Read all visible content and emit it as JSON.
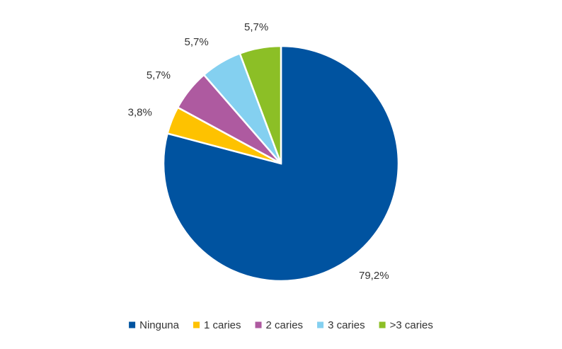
{
  "chart_data": {
    "type": "pie",
    "categories": [
      "Ninguna",
      "1 caries",
      "2 caries",
      "3 caries",
      ">3 caries"
    ],
    "values": [
      79.2,
      3.8,
      5.7,
      5.7,
      5.7
    ],
    "data_labels": [
      "79,2%",
      "3,8%",
      "5,7%",
      "5,7%",
      "5,7%"
    ],
    "colors": [
      "#0053a0",
      "#fec200",
      "#ae5aa0",
      "#84d0f0",
      "#8cbf26"
    ],
    "legend_position": "bottom",
    "start_angle": "12 o'clock, clockwise"
  }
}
